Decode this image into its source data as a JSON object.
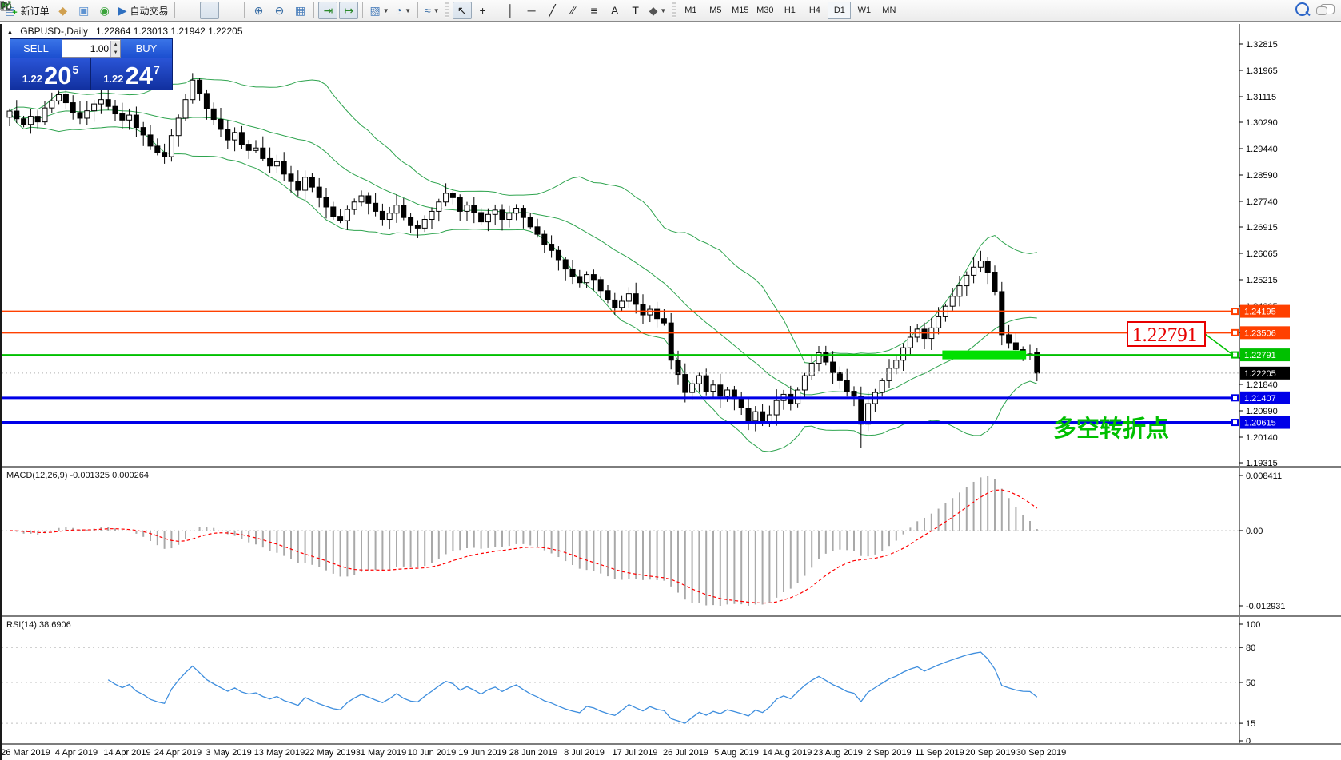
{
  "toolbar": {
    "items": [
      {
        "kind": "button",
        "name": "new-order-button",
        "icon": "▤",
        "color": "#4a7ebb",
        "plus": true,
        "label": "新订单"
      },
      {
        "kind": "button",
        "name": "editor-button",
        "icon": "◆",
        "color": "#d0a050"
      },
      {
        "kind": "button",
        "name": "market-watch-button",
        "icon": "▣",
        "color": "#5e93d1"
      },
      {
        "kind": "button",
        "name": "alerts-button",
        "icon": "◉",
        "color": "#3aa33a"
      },
      {
        "kind": "button",
        "name": "autotrading-button",
        "icon": "▶",
        "color": "#2e6fc0",
        "label": "自动交易"
      },
      {
        "kind": "sep"
      },
      {
        "kind": "svgbtn",
        "name": "bar-chart-button",
        "svg": "bars"
      },
      {
        "kind": "svgbtn",
        "name": "candle-chart-button",
        "svg": "candles",
        "pressed": true
      },
      {
        "kind": "svgbtn",
        "name": "line-chart-button",
        "svg": "line"
      },
      {
        "kind": "sep"
      },
      {
        "kind": "button",
        "name": "zoom-in-button",
        "icon": "⊕",
        "color": "#3a6ea5"
      },
      {
        "kind": "button",
        "name": "zoom-out-button",
        "icon": "⊖",
        "color": "#3a6ea5"
      },
      {
        "kind": "button",
        "name": "tile-windows-button",
        "icon": "▦",
        "color": "#4a7ebb"
      },
      {
        "kind": "sep"
      },
      {
        "kind": "button",
        "name": "auto-scroll-button",
        "icon": "⇥",
        "color": "#2c8a2c",
        "pressed": true
      },
      {
        "kind": "button",
        "name": "chart-shift-button",
        "icon": "↦",
        "color": "#2c8a2c",
        "pressed": true
      },
      {
        "kind": "sep"
      },
      {
        "kind": "button",
        "name": "new-chart-button",
        "icon": "▧",
        "color": "#4a7ebb",
        "dropdown": true
      },
      {
        "kind": "button",
        "name": "profiles-button",
        "icon": "◔",
        "color": "#3a6ea5",
        "dropdown": true
      },
      {
        "kind": "sep"
      },
      {
        "kind": "button",
        "name": "indicators-button",
        "icon": "≈",
        "color": "#3a6ea5",
        "dropdown": true
      },
      {
        "kind": "grip"
      },
      {
        "kind": "button",
        "name": "cursor-button",
        "icon": "↖",
        "color": "#222",
        "pressed": true
      },
      {
        "kind": "button",
        "name": "crosshair-button",
        "icon": "+",
        "color": "#222"
      },
      {
        "kind": "sep"
      },
      {
        "kind": "button",
        "name": "vline-button",
        "icon": "│",
        "color": "#222"
      },
      {
        "kind": "button",
        "name": "hline-button",
        "icon": "─",
        "color": "#222"
      },
      {
        "kind": "button",
        "name": "trendline-button",
        "icon": "╱",
        "color": "#222"
      },
      {
        "kind": "button",
        "name": "channel-button",
        "icon": "∕∕",
        "color": "#222"
      },
      {
        "kind": "button",
        "name": "fibonacci-button",
        "icon": "≡",
        "color": "#222"
      },
      {
        "kind": "button",
        "name": "text-button",
        "icon": "A",
        "color": "#222"
      },
      {
        "kind": "button",
        "name": "text-label-button",
        "icon": "T",
        "color": "#222"
      },
      {
        "kind": "button",
        "name": "arrows-button",
        "icon": "◆",
        "color": "#555",
        "dropdown": true
      },
      {
        "kind": "grip"
      },
      {
        "kind": "tf",
        "name": "tf-m1",
        "label": "M1"
      },
      {
        "kind": "tf",
        "name": "tf-m5",
        "label": "M5"
      },
      {
        "kind": "tf",
        "name": "tf-m15",
        "label": "M15"
      },
      {
        "kind": "tf",
        "name": "tf-m30",
        "label": "M30"
      },
      {
        "kind": "tf",
        "name": "tf-h1",
        "label": "H1"
      },
      {
        "kind": "tf",
        "name": "tf-h4",
        "label": "H4"
      },
      {
        "kind": "tf",
        "name": "tf-d1",
        "label": "D1",
        "pressed": true
      },
      {
        "kind": "tf",
        "name": "tf-w1",
        "label": "W1"
      },
      {
        "kind": "tf",
        "name": "tf-mn",
        "label": "MN"
      }
    ]
  },
  "header": {
    "collapse_glyph": "▲",
    "title": "GBPUSD-,Daily",
    "ohlc": "1.22864 1.23013 1.21942 1.22205"
  },
  "trade_panel": {
    "sell_label": "SELL",
    "buy_label": "BUY",
    "volume": "1.00",
    "sell_small": "1.22",
    "sell_big": "20",
    "sell_sup": "5",
    "buy_small": "1.22",
    "buy_big": "24",
    "buy_sup": "7"
  },
  "chart_data": {
    "type": "candlestick",
    "symbol": "GBPUSD-",
    "timeframe": "Daily",
    "last_ohlc": {
      "open": 1.22864,
      "high": 1.23013,
      "low": 1.21942,
      "close": 1.22205
    },
    "closes": [
      1.3065,
      1.304,
      1.3022,
      1.3048,
      1.303,
      1.3075,
      1.3098,
      1.3118,
      1.3092,
      1.306,
      1.3042,
      1.3066,
      1.3088,
      1.3102,
      1.308,
      1.3056,
      1.3036,
      1.3052,
      1.3012,
      1.2988,
      1.2952,
      1.2932,
      1.2918,
      1.2986,
      1.3042,
      1.3102,
      1.3165,
      1.3122,
      1.3072,
      1.3038,
      1.3006,
      1.2972,
      1.2996,
      1.2958,
      1.2938,
      1.2946,
      1.2912,
      1.2888,
      1.2902,
      1.2862,
      1.2838,
      1.281,
      1.2852,
      1.282,
      1.2786,
      1.2756,
      1.2726,
      1.2712,
      1.2748,
      1.2772,
      1.2792,
      1.2768,
      1.2742,
      1.2716,
      1.2736,
      1.2762,
      1.2722,
      1.2696,
      1.2688,
      1.2716,
      1.2742,
      1.2772,
      1.28,
      1.2786,
      1.2742,
      1.2762,
      1.2738,
      1.2708,
      1.2732,
      1.2746,
      1.2716,
      1.2736,
      1.2752,
      1.2722,
      1.2692,
      1.2668,
      1.2636,
      1.2616,
      1.2586,
      1.2556,
      1.2532,
      1.2512,
      1.2538,
      1.2522,
      1.2486,
      1.2456,
      1.2432,
      1.2452,
      1.2476,
      1.2442,
      1.2408,
      1.2426,
      1.2396,
      1.2382,
      1.2262,
      1.2216,
      1.2158,
      1.2186,
      1.2212,
      1.2162,
      1.2182,
      1.2146,
      1.2166,
      1.2138,
      1.2108,
      1.2066,
      1.2096,
      1.2058,
      1.2086,
      1.2132,
      1.2152,
      1.2122,
      1.2166,
      1.2212,
      1.2252,
      1.2286,
      1.2256,
      1.2222,
      1.2196,
      1.2162,
      1.2146,
      1.2056,
      1.2122,
      1.2158,
      1.2196,
      1.2236,
      1.2262,
      1.2302,
      1.2336,
      1.2362,
      1.2332,
      1.2366,
      1.2402,
      1.2436,
      1.2468,
      1.2502,
      1.2536,
      1.2562,
      1.2582,
      1.2546,
      1.2483,
      1.2344,
      1.2318,
      1.2296,
      1.2282,
      1.228,
      1.22205
    ],
    "long_wick_bar": 121,
    "y_axis_ticks": [
      "1.32815",
      "1.31965",
      "1.31115",
      "1.30290",
      "1.29440",
      "1.28590",
      "1.27740",
      "1.26915",
      "1.26065",
      "1.25215",
      "1.24365",
      "1.23515",
      "1.22690",
      "1.21840",
      "1.20990",
      "1.20140",
      "1.19315"
    ],
    "x_axis_labels": [
      "26 Mar 2019",
      "4 Apr 2019",
      "14 Apr 2019",
      "24 Apr 2019",
      "3 May 2019",
      "13 May 2019",
      "22 May 2019",
      "31 May 2019",
      "10 Jun 2019",
      "19 Jun 2019",
      "28 Jun 2019",
      "8 Jul 2019",
      "17 Jul 2019",
      "26 Jul 2019",
      "5 Aug 2019",
      "14 Aug 2019",
      "23 Aug 2019",
      "2 Sep 2019",
      "11 Sep 2019",
      "20 Sep 2019",
      "30 Sep 2019"
    ],
    "hlines": [
      {
        "label": "1.24195",
        "price": 1.24195,
        "color": "#ff4000",
        "width": 2
      },
      {
        "label": "1.23506",
        "price": 1.23506,
        "color": "#ff4000",
        "width": 2
      },
      {
        "label": "1.22791",
        "price": 1.22791,
        "color": "#00c000",
        "width": 2
      },
      {
        "label": "1.21407",
        "price": 1.21407,
        "color": "#0000e8",
        "width": 3
      },
      {
        "label": "1.20615",
        "price": 1.20615,
        "color": "#0000e8",
        "width": 3
      }
    ],
    "current_price": {
      "label": "1.22205",
      "price": 1.22205,
      "line_color": "#b0b0b0",
      "label_bg": "#000000"
    },
    "bollinger": {
      "period": 20,
      "deviation": 2,
      "color": "#2fa44f"
    },
    "annotations": {
      "thick_band": {
        "price": 1.22791,
        "bar_start": 133,
        "bar_end": 144,
        "color": "#00e000",
        "thickness": 11
      },
      "price_callout": {
        "text": "1.22791",
        "color": "#e80000",
        "connector_color": "#00c000"
      },
      "cn_note": {
        "text": "多空转折点",
        "color": "#00c000"
      }
    },
    "macd": {
      "name": "MACD(12,26,9)",
      "values_text": "-0.001325 0.000264",
      "fast": 12,
      "slow": 26,
      "signal": 9,
      "axis_labels": [
        "0.008411",
        "0.00",
        "-0.012931"
      ],
      "hist_color": "#a9a9a9",
      "signal_color": "#ff0000"
    },
    "rsi": {
      "name": "RSI(14)",
      "value_text": "38.6906",
      "period": 14,
      "levels": [
        80,
        50,
        15
      ],
      "axis_labels": [
        "100",
        "80",
        "50",
        "15",
        "0"
      ],
      "line_color": "#3e8ede"
    }
  }
}
